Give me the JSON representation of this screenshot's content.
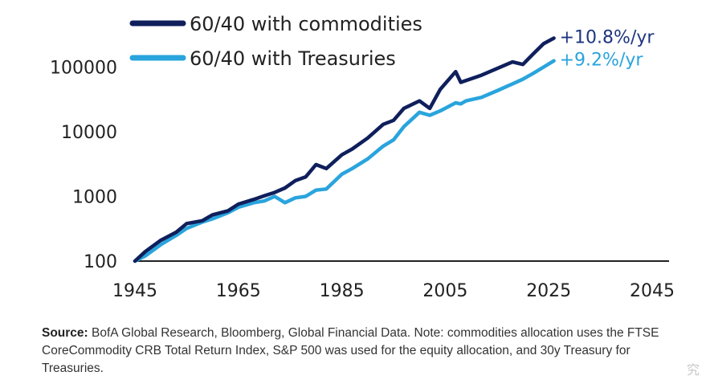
{
  "chart_data": {
    "type": "line",
    "title": "",
    "xlabel": "",
    "ylabel": "",
    "yscale": "log",
    "xlim": [
      1945,
      2045
    ],
    "ylim": [
      100,
      200000
    ],
    "x_ticks": [
      "1945",
      "1965",
      "1985",
      "2005",
      "2025",
      "2045"
    ],
    "y_ticks": [
      "100",
      "1000",
      "10000",
      "100000"
    ],
    "grid": false,
    "legend_position": "top-left",
    "series": [
      {
        "name": "60/40 with commodities",
        "color": "#0f1f5c",
        "end_label": "+10.8%/yr",
        "end_label_color": "#1f3680",
        "x": [
          1945,
          1947,
          1950,
          1953,
          1955,
          1958,
          1960,
          1963,
          1965,
          1968,
          1970,
          1972,
          1974,
          1976,
          1978,
          1980,
          1982,
          1985,
          1987,
          1990,
          1993,
          1995,
          1997,
          2000,
          2002,
          2004,
          2007,
          2008,
          2009,
          2012,
          2015,
          2018,
          2020,
          2022,
          2024,
          2026
        ],
        "y": [
          100,
          140,
          210,
          280,
          380,
          420,
          520,
          600,
          760,
          900,
          1020,
          1150,
          1350,
          1750,
          2000,
          3100,
          2700,
          4400,
          5400,
          8000,
          13000,
          15000,
          23000,
          30000,
          23000,
          45000,
          85000,
          58000,
          62000,
          75000,
          95000,
          120000,
          110000,
          160000,
          230000,
          280000
        ]
      },
      {
        "name": "60/40 with Treasuries",
        "color": "#2aa4dd",
        "end_label": "+9.2%/yr",
        "end_label_color": "#2aa4dd",
        "x": [
          1945,
          1947,
          1950,
          1953,
          1955,
          1958,
          1960,
          1963,
          1965,
          1968,
          1970,
          1972,
          1974,
          1976,
          1978,
          1980,
          1982,
          1985,
          1987,
          1990,
          1993,
          1995,
          1997,
          2000,
          2002,
          2004,
          2007,
          2008,
          2009,
          2012,
          2015,
          2018,
          2020,
          2022,
          2024,
          2026
        ],
        "y": [
          100,
          120,
          180,
          250,
          320,
          400,
          450,
          560,
          680,
          800,
          850,
          1000,
          800,
          950,
          1000,
          1250,
          1300,
          2200,
          2700,
          3800,
          6000,
          7500,
          12000,
          20000,
          18000,
          21000,
          28000,
          27000,
          30000,
          34000,
          43000,
          55000,
          65000,
          80000,
          100000,
          125000
        ]
      }
    ]
  },
  "source": {
    "label": "Source:",
    "text": " BofA Global Research, Bloomberg, Global Financial Data. Note: commodities allocation uses the FTSE CoreCommodity CRB Total Return Index, S&P 500 was used for the equity allocation, and 30y Treasury for Treasuries."
  },
  "watermark": "究"
}
